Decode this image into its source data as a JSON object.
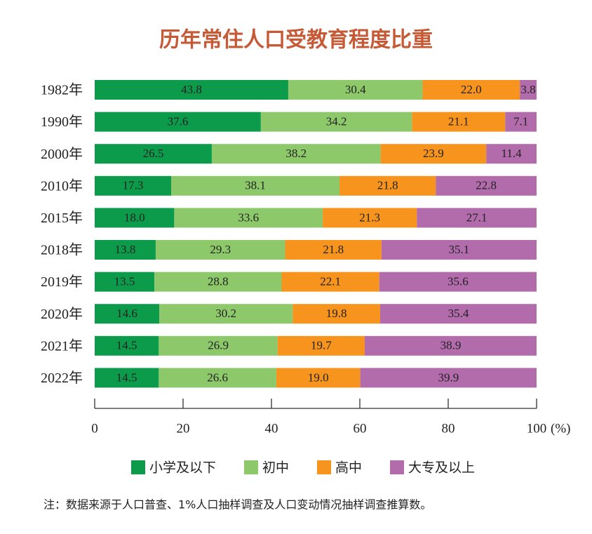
{
  "chart_data": {
    "type": "stacked_bar_horizontal",
    "title": "历年常住人口受教育程度比重",
    "categories": [
      "1982年",
      "1990年",
      "2000年",
      "2010年",
      "2015年",
      "2018年",
      "2019年",
      "2020年",
      "2021年",
      "2022年"
    ],
    "series": [
      {
        "name": "小学及以下",
        "color": "#0c9b4b",
        "values": [
          43.8,
          37.6,
          26.5,
          17.3,
          18.0,
          13.8,
          13.5,
          14.6,
          14.5,
          14.5
        ],
        "value_labels": [
          "43.8",
          "37.6",
          "26.5",
          "17.3",
          "18.0",
          "13.8",
          "13.5",
          "14.6",
          "14.5",
          "14.5"
        ]
      },
      {
        "name": "初中",
        "color": "#8dc96b",
        "values": [
          30.4,
          34.2,
          38.2,
          38.1,
          33.6,
          29.3,
          28.8,
          30.2,
          26.9,
          26.6
        ],
        "value_labels": [
          "30.4",
          "34.2",
          "38.2",
          "38.1",
          "33.6",
          "29.3",
          "28.8",
          "30.2",
          "26.9",
          "26.6"
        ]
      },
      {
        "name": "高中",
        "color": "#f7941e",
        "values": [
          22.0,
          21.1,
          23.9,
          21.8,
          21.3,
          21.8,
          22.1,
          19.8,
          19.7,
          19.0
        ],
        "value_labels": [
          "22.0",
          "21.1",
          "23.9",
          "21.8",
          "21.3",
          "21.8",
          "22.1",
          "19.8",
          "19.7",
          "19.0"
        ]
      },
      {
        "name": "大专及以上",
        "color": "#b26bab",
        "values": [
          3.8,
          7.1,
          11.4,
          22.8,
          27.1,
          35.1,
          35.6,
          35.4,
          38.9,
          39.9
        ],
        "value_labels": [
          "3.8",
          "7.1",
          "11.4",
          "22.8",
          "27.1",
          "35.1",
          "35.6",
          "35.4",
          "38.9",
          "39.9"
        ]
      }
    ],
    "xlim": [
      0,
      100
    ],
    "xticks": [
      0,
      20,
      40,
      60,
      80,
      100
    ],
    "xlabel": "(%)",
    "note": "注：数据来源于人口普查、1%人口抽样调查及人口变动情况抽样调查推算数。"
  }
}
